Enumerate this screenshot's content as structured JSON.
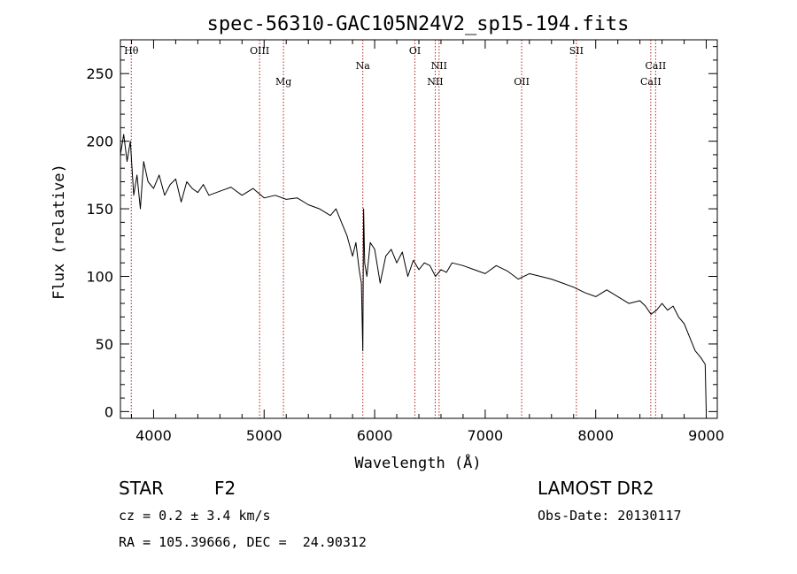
{
  "chart_data": {
    "type": "line",
    "title": "spec-56310-GAC105N24V2_sp15-194.fits",
    "xlabel": "Wavelength (Å)",
    "ylabel": "Flux (relative)",
    "xlim": [
      3700,
      9100
    ],
    "ylim": [
      -5,
      275
    ],
    "xticks": [
      4000,
      5000,
      6000,
      7000,
      8000,
      9000
    ],
    "yticks": [
      0,
      50,
      100,
      150,
      200,
      250
    ],
    "series": [
      {
        "x": [
          3700,
          3730,
          3760,
          3790,
          3820,
          3850,
          3880,
          3910,
          3950,
          4000,
          4050,
          4100,
          4150,
          4200,
          4250,
          4300,
          4350,
          4400,
          4450,
          4500,
          4600,
          4700,
          4800,
          4900,
          5000,
          5100,
          5200,
          5300,
          5400,
          5500,
          5600,
          5650,
          5700,
          5750,
          5800,
          5830,
          5860,
          5880,
          5893,
          5900,
          5910,
          5930,
          5960,
          6000,
          6050,
          6100,
          6150,
          6200,
          6250,
          6300,
          6350,
          6400,
          6450,
          6500,
          6550,
          6600,
          6650,
          6700,
          6800,
          6900,
          7000,
          7100,
          7200,
          7300,
          7400,
          7500,
          7600,
          7700,
          7800,
          7900,
          8000,
          8100,
          8200,
          8300,
          8400,
          8450,
          8500,
          8550,
          8600,
          8650,
          8700,
          8750,
          8800,
          8850,
          8900,
          8950,
          8990,
          9000
        ],
        "y": [
          190,
          205,
          185,
          200,
          160,
          175,
          150,
          185,
          170,
          165,
          175,
          160,
          168,
          172,
          155,
          170,
          165,
          162,
          168,
          160,
          163,
          166,
          160,
          165,
          158,
          160,
          157,
          158,
          153,
          150,
          145,
          150,
          140,
          130,
          115,
          125,
          105,
          95,
          45,
          150,
          110,
          100,
          125,
          120,
          95,
          115,
          120,
          110,
          118,
          100,
          112,
          105,
          110,
          108,
          100,
          105,
          103,
          110,
          108,
          105,
          102,
          108,
          104,
          98,
          102,
          100,
          98,
          95,
          92,
          88,
          85,
          90,
          85,
          80,
          82,
          78,
          72,
          75,
          80,
          75,
          78,
          70,
          65,
          55,
          45,
          40,
          35,
          0
        ]
      }
    ],
    "spectral_lines": [
      {
        "label": "Hθ",
        "x": 3798,
        "row": "top"
      },
      {
        "label": "OIII",
        "x": 4959,
        "row": "top"
      },
      {
        "label": "Mg",
        "x": 5175,
        "row": "low"
      },
      {
        "label": "Na",
        "x": 5893,
        "row": "mid"
      },
      {
        "label": "OI",
        "x": 6364,
        "row": "top"
      },
      {
        "label": "NII",
        "x": 6548,
        "row": "low"
      },
      {
        "label": "NII",
        "x": 6583,
        "row": "mid"
      },
      {
        "label": "OII",
        "x": 7330,
        "row": "low"
      },
      {
        "label": "SII",
        "x": 7825,
        "row": "top"
      },
      {
        "label": "CaII",
        "x": 8498,
        "row": "low"
      },
      {
        "label": "CaII",
        "x": 8542,
        "row": "mid"
      }
    ]
  },
  "info": {
    "object_class": "STAR",
    "subclass": "F2",
    "survey": "LAMOST DR2",
    "cz": "cz = 0.2 ± 3.4 km/s",
    "obs_date": "Obs-Date: 20130117",
    "coords": "RA = 105.39666, DEC =  24.90312"
  }
}
